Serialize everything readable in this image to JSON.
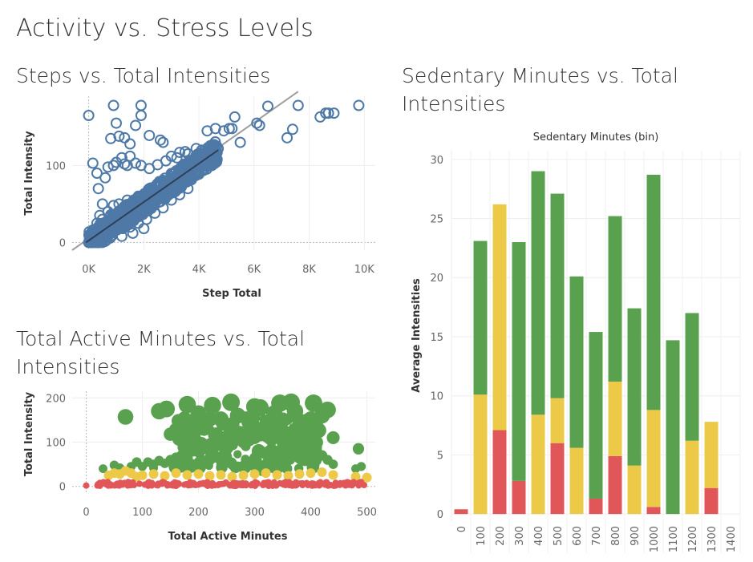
{
  "dashboard": {
    "title": "Activity vs. Stress Levels"
  },
  "sheets": {
    "steps": {
      "title": "Steps vs. Total Intensities"
    },
    "active": {
      "title_line1": "Total Active Minutes vs. Total",
      "title_line2": "Intensities"
    },
    "sedentary": {
      "title_line1": "Sedentary Minutes vs. Total",
      "title_line2": "Intensities"
    }
  },
  "colors": {
    "blue": "#4e79a7",
    "green": "#59a14f",
    "yellow": "#edc948",
    "red": "#e15759",
    "trend_dark": "#2f3f55",
    "trend_light": "#9e9e9e"
  },
  "chart_data": [
    {
      "type": "scatter",
      "title": "Steps vs. Total Intensities",
      "xlabel": "Step Total",
      "ylabel": "Total Intensity",
      "xlim": [
        -600,
        10400
      ],
      "ylim": [
        -10,
        190
      ],
      "xticks": [
        {
          "v": 0,
          "label": "0K"
        },
        {
          "v": 2000,
          "label": "2K"
        },
        {
          "v": 4000,
          "label": "4K"
        },
        {
          "v": 6000,
          "label": "6K"
        },
        {
          "v": 8000,
          "label": "8K"
        },
        {
          "v": 10000,
          "label": "10K"
        }
      ],
      "yticks": [
        {
          "v": 0,
          "label": "0"
        },
        {
          "v": 100,
          "label": "100"
        }
      ],
      "points": [
        [
          0,
          165
        ],
        [
          150,
          103
        ],
        [
          900,
          178
        ],
        [
          800,
          135
        ],
        [
          1000,
          155
        ],
        [
          1100,
          138
        ],
        [
          1300,
          136
        ],
        [
          1500,
          128
        ],
        [
          1700,
          152
        ],
        [
          1900,
          178
        ],
        [
          1900,
          165
        ],
        [
          2200,
          139
        ],
        [
          2600,
          133
        ],
        [
          2700,
          130
        ],
        [
          3200,
          110
        ],
        [
          3500,
          118
        ],
        [
          4300,
          145
        ],
        [
          4600,
          148
        ],
        [
          4900,
          145
        ],
        [
          5100,
          148
        ],
        [
          5200,
          148
        ],
        [
          5300,
          163
        ],
        [
          5500,
          130
        ],
        [
          6100,
          155
        ],
        [
          6200,
          152
        ],
        [
          6500,
          177
        ],
        [
          7200,
          136
        ],
        [
          7400,
          147
        ],
        [
          7600,
          178
        ],
        [
          8400,
          163
        ],
        [
          8600,
          168
        ],
        [
          8700,
          168
        ],
        [
          8900,
          168
        ],
        [
          9800,
          178
        ],
        [
          300,
          90
        ],
        [
          350,
          70
        ],
        [
          500,
          50
        ],
        [
          600,
          84
        ],
        [
          700,
          98
        ],
        [
          900,
          100
        ],
        [
          1000,
          104
        ],
        [
          1200,
          110
        ],
        [
          1300,
          102
        ],
        [
          1400,
          100
        ],
        [
          1500,
          112
        ],
        [
          1700,
          103
        ],
        [
          1900,
          100
        ],
        [
          2200,
          96
        ],
        [
          2500,
          101
        ],
        [
          2800,
          106
        ],
        [
          3000,
          112
        ],
        [
          3300,
          117
        ],
        [
          3600,
          115
        ],
        [
          3900,
          122
        ],
        [
          4100,
          120
        ],
        [
          4400,
          118
        ],
        [
          4700,
          122
        ],
        [
          300,
          25
        ],
        [
          400,
          35
        ],
        [
          500,
          30
        ],
        [
          600,
          22
        ],
        [
          700,
          40
        ],
        [
          800,
          36
        ],
        [
          900,
          48
        ],
        [
          1000,
          35
        ],
        [
          1100,
          50
        ],
        [
          1300,
          42
        ],
        [
          1400,
          55
        ],
        [
          1600,
          48
        ],
        [
          1800,
          60
        ],
        [
          2000,
          52
        ],
        [
          2200,
          68
        ],
        [
          2400,
          62
        ],
        [
          2600,
          74
        ],
        [
          2800,
          78
        ],
        [
          3000,
          80
        ],
        [
          3200,
          86
        ],
        [
          3400,
          88
        ],
        [
          3600,
          92
        ],
        [
          3800,
          96
        ],
        [
          4000,
          98
        ],
        [
          4200,
          102
        ],
        [
          4500,
          108
        ],
        [
          1500,
          20
        ],
        [
          1800,
          25
        ],
        [
          2100,
          30
        ],
        [
          2400,
          38
        ],
        [
          2700,
          45
        ],
        [
          3000,
          55
        ],
        [
          3300,
          62
        ],
        [
          3600,
          70
        ],
        [
          1200,
          8
        ],
        [
          1600,
          12
        ],
        [
          2000,
          18
        ],
        [
          100,
          5
        ],
        [
          200,
          10
        ],
        [
          150,
          3
        ],
        [
          50,
          1
        ],
        [
          700,
          15
        ],
        [
          800,
          12
        ],
        [
          1100,
          24
        ]
      ],
      "trend": [
        [
          -600,
          -10
        ],
        [
          7600,
          196
        ]
      ]
    },
    {
      "type": "scatter",
      "title": "Total Active Minutes vs. Total Intensities",
      "xlabel": "Total Active Minutes",
      "ylabel": "Total Intensity",
      "xlim": [
        -25,
        515
      ],
      "ylim": [
        -15,
        215
      ],
      "xticks": [
        {
          "v": 0,
          "label": "0"
        },
        {
          "v": 100,
          "label": "100"
        },
        {
          "v": 200,
          "label": "200"
        },
        {
          "v": 300,
          "label": "300"
        },
        {
          "v": 400,
          "label": "400"
        },
        {
          "v": 500,
          "label": "500"
        }
      ],
      "yticks": [
        {
          "v": 0,
          "label": "0"
        },
        {
          "v": 100,
          "label": "100"
        },
        {
          "v": 200,
          "label": "200"
        }
      ],
      "points": [
        [
          180,
          185
        ],
        [
          225,
          183
        ],
        [
          258,
          190
        ],
        [
          300,
          180
        ],
        [
          345,
          188
        ],
        [
          365,
          190
        ],
        [
          405,
          188
        ],
        [
          430,
          173
        ],
        [
          70,
          157
        ],
        [
          130,
          170
        ],
        [
          143,
          175
        ],
        [
          200,
          165
        ],
        [
          240,
          152
        ],
        [
          270,
          160
        ],
        [
          310,
          178
        ],
        [
          335,
          165
        ],
        [
          372,
          170
        ],
        [
          400,
          152
        ],
        [
          420,
          160
        ],
        [
          150,
          118
        ],
        [
          160,
          128
        ],
        [
          210,
          130
        ],
        [
          260,
          140
        ],
        [
          290,
          145
        ],
        [
          320,
          132
        ],
        [
          350,
          150
        ],
        [
          380,
          140
        ],
        [
          410,
          135
        ],
        [
          440,
          110
        ],
        [
          485,
          85
        ],
        [
          30,
          40
        ],
        [
          50,
          48
        ],
        [
          60,
          42
        ],
        [
          80,
          45
        ],
        [
          90,
          55
        ],
        [
          100,
          45
        ],
        [
          110,
          55
        ],
        [
          120,
          50
        ],
        [
          130,
          58
        ],
        [
          140,
          52
        ],
        [
          150,
          60
        ],
        [
          160,
          65
        ],
        [
          170,
          70
        ],
        [
          180,
          75
        ],
        [
          190,
          80
        ],
        [
          200,
          85
        ],
        [
          210,
          90
        ],
        [
          220,
          95
        ],
        [
          230,
          100
        ],
        [
          240,
          105
        ],
        [
          250,
          110
        ],
        [
          260,
          95
        ],
        [
          270,
          115
        ],
        [
          280,
          100
        ],
        [
          290,
          120
        ],
        [
          300,
          110
        ],
        [
          310,
          125
        ],
        [
          320,
          115
        ],
        [
          330,
          105
        ],
        [
          340,
          120
        ],
        [
          350,
          100
        ],
        [
          360,
          115
        ],
        [
          370,
          95
        ],
        [
          380,
          110
        ],
        [
          390,
          90
        ],
        [
          400,
          100
        ],
        [
          410,
          80
        ],
        [
          420,
          70
        ],
        [
          430,
          60
        ],
        [
          440,
          50
        ],
        [
          480,
          40
        ],
        [
          490,
          45
        ],
        [
          200,
          55
        ],
        [
          250,
          60
        ],
        [
          300,
          65
        ],
        [
          350,
          70
        ],
        [
          400,
          55
        ],
        [
          180,
          50
        ],
        [
          260,
          48
        ],
        [
          320,
          52
        ],
        [
          220,
          58
        ],
        [
          380,
          62
        ],
        [
          120,
          42
        ],
        [
          170,
          44
        ],
        [
          270,
          46
        ],
        [
          340,
          48
        ]
      ],
      "yellow_points": [
        [
          40,
          25
        ],
        [
          50,
          30
        ],
        [
          60,
          28
        ],
        [
          70,
          35
        ],
        [
          80,
          30
        ],
        [
          90,
          22
        ],
        [
          100,
          25
        ],
        [
          120,
          28
        ],
        [
          140,
          24
        ],
        [
          160,
          30
        ],
        [
          180,
          26
        ],
        [
          200,
          28
        ],
        [
          220,
          24
        ],
        [
          240,
          26
        ],
        [
          260,
          22
        ],
        [
          280,
          25
        ],
        [
          300,
          28
        ],
        [
          320,
          30
        ],
        [
          340,
          26
        ],
        [
          360,
          24
        ],
        [
          380,
          28
        ],
        [
          400,
          30
        ],
        [
          420,
          32
        ],
        [
          440,
          26
        ],
        [
          480,
          22
        ],
        [
          500,
          20
        ]
      ],
      "red_points": [
        [
          0,
          2
        ],
        [
          20,
          2
        ],
        [
          25,
          8
        ],
        [
          35,
          5
        ],
        [
          45,
          3
        ],
        [
          55,
          6
        ],
        [
          65,
          4
        ],
        [
          75,
          7
        ],
        [
          85,
          3
        ],
        [
          95,
          6
        ],
        [
          105,
          4
        ],
        [
          115,
          7
        ],
        [
          125,
          3
        ],
        [
          135,
          6
        ],
        [
          145,
          5
        ],
        [
          155,
          2
        ],
        [
          165,
          6
        ],
        [
          175,
          4
        ],
        [
          185,
          7
        ],
        [
          195,
          3
        ],
        [
          205,
          6
        ],
        [
          215,
          4
        ],
        [
          225,
          7
        ],
        [
          235,
          3
        ],
        [
          245,
          6
        ],
        [
          255,
          4
        ],
        [
          265,
          7
        ],
        [
          275,
          3
        ],
        [
          285,
          6
        ],
        [
          295,
          4
        ],
        [
          305,
          7
        ],
        [
          315,
          3
        ],
        [
          325,
          6
        ],
        [
          335,
          4
        ],
        [
          345,
          7
        ],
        [
          355,
          3
        ],
        [
          365,
          6
        ],
        [
          375,
          4
        ],
        [
          385,
          7
        ],
        [
          395,
          3
        ],
        [
          405,
          6
        ],
        [
          415,
          4
        ],
        [
          425,
          7
        ],
        [
          435,
          3
        ],
        [
          445,
          6
        ],
        [
          460,
          4
        ],
        [
          485,
          5
        ],
        [
          495,
          3
        ]
      ]
    },
    {
      "type": "bar",
      "title": "Sedentary Minutes vs. Total Intensities",
      "column_header": "Sedentary Minutes (bin)",
      "ylabel": "Average Intensities",
      "categories": [
        "0",
        "100",
        "200",
        "300",
        "400",
        "500",
        "600",
        "700",
        "800",
        "900",
        "1000",
        "1100",
        "1200",
        "1300",
        "1400"
      ],
      "ylim": [
        -0.6,
        30.8
      ],
      "yticks": [
        0,
        5,
        10,
        15,
        20,
        25,
        30
      ],
      "series": [
        {
          "color": "red",
          "values": [
            0.4,
            0,
            7.1,
            2.8,
            0,
            6,
            0,
            1.3,
            4.9,
            0,
            0.6,
            0,
            0,
            2.2,
            0
          ]
        },
        {
          "color": "yellow",
          "values": [
            0,
            10.1,
            19.1,
            0,
            8.4,
            3.8,
            5.6,
            0,
            6.3,
            4.1,
            8.2,
            0,
            6.2,
            5.6,
            0
          ]
        },
        {
          "color": "green",
          "values": [
            0,
            13,
            0,
            20.2,
            20.6,
            17.3,
            14.5,
            14.1,
            14,
            13.3,
            19.9,
            14.7,
            10.8,
            0,
            0
          ]
        }
      ]
    }
  ]
}
